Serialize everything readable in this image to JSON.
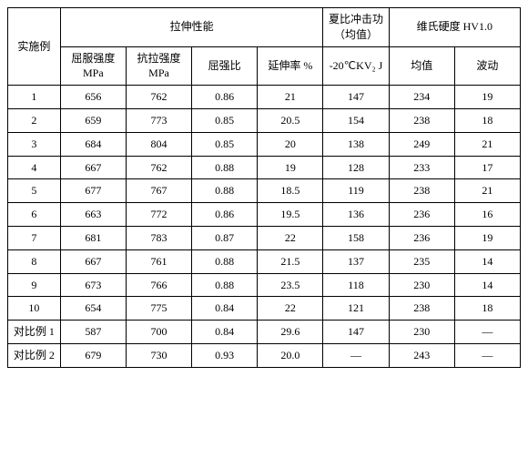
{
  "headers": {
    "row_label": "实施例",
    "tensile_group": "拉伸性能",
    "impact_group": "夏比冲击功（均值）",
    "hardness_group": "维氏硬度 HV1.0",
    "yield": "屈服强度 MPa",
    "tensile": "抗拉强度 MPa",
    "ratio": "屈强比",
    "elong": "延伸率 %",
    "impact": "-20℃KV₂ J",
    "hv_mean": "均值",
    "hv_range": "波动"
  },
  "rows": [
    {
      "label": "1",
      "yield": "656",
      "tensile": "762",
      "ratio": "0.86",
      "elong": "21",
      "impact": "147",
      "hv_mean": "234",
      "hv_range": "19"
    },
    {
      "label": "2",
      "yield": "659",
      "tensile": "773",
      "ratio": "0.85",
      "elong": "20.5",
      "impact": "154",
      "hv_mean": "238",
      "hv_range": "18"
    },
    {
      "label": "3",
      "yield": "684",
      "tensile": "804",
      "ratio": "0.85",
      "elong": "20",
      "impact": "138",
      "hv_mean": "249",
      "hv_range": "21"
    },
    {
      "label": "4",
      "yield": "667",
      "tensile": "762",
      "ratio": "0.88",
      "elong": "19",
      "impact": "128",
      "hv_mean": "233",
      "hv_range": "17"
    },
    {
      "label": "5",
      "yield": "677",
      "tensile": "767",
      "ratio": "0.88",
      "elong": "18.5",
      "impact": "119",
      "hv_mean": "238",
      "hv_range": "21"
    },
    {
      "label": "6",
      "yield": "663",
      "tensile": "772",
      "ratio": "0.86",
      "elong": "19.5",
      "impact": "136",
      "hv_mean": "236",
      "hv_range": "16"
    },
    {
      "label": "7",
      "yield": "681",
      "tensile": "783",
      "ratio": "0.87",
      "elong": "22",
      "impact": "158",
      "hv_mean": "236",
      "hv_range": "19"
    },
    {
      "label": "8",
      "yield": "667",
      "tensile": "761",
      "ratio": "0.88",
      "elong": "21.5",
      "impact": "137",
      "hv_mean": "235",
      "hv_range": "14"
    },
    {
      "label": "9",
      "yield": "673",
      "tensile": "766",
      "ratio": "0.88",
      "elong": "23.5",
      "impact": "118",
      "hv_mean": "230",
      "hv_range": "14"
    },
    {
      "label": "10",
      "yield": "654",
      "tensile": "775",
      "ratio": "0.84",
      "elong": "22",
      "impact": "121",
      "hv_mean": "238",
      "hv_range": "18"
    },
    {
      "label": "对比例 1",
      "yield": "587",
      "tensile": "700",
      "ratio": "0.84",
      "elong": "29.6",
      "impact": "147",
      "hv_mean": "230",
      "hv_range": "—"
    },
    {
      "label": "对比例 2",
      "yield": "679",
      "tensile": "730",
      "ratio": "0.93",
      "elong": "20.0",
      "impact": "—",
      "hv_mean": "243",
      "hv_range": "—"
    }
  ]
}
